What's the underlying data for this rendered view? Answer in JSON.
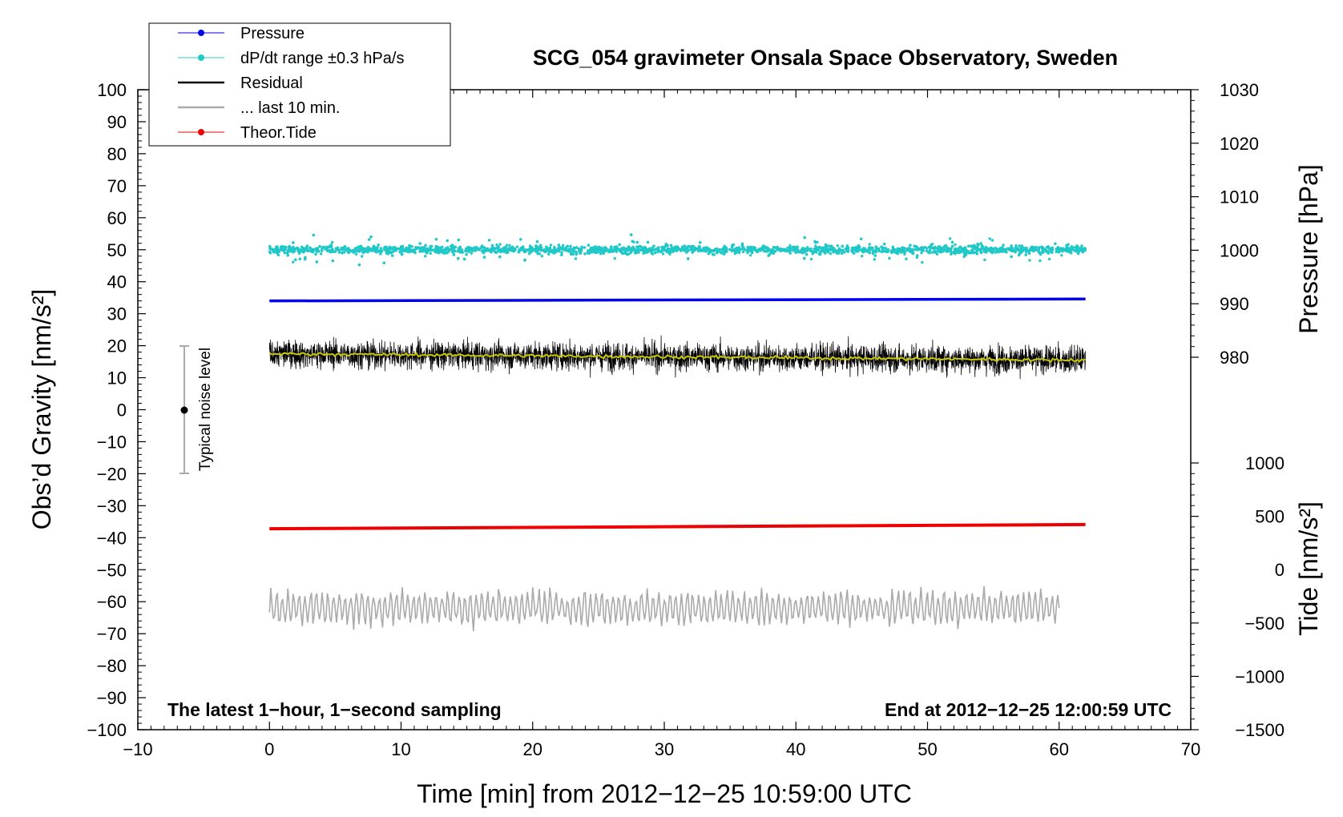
{
  "chart_data": {
    "type": "line",
    "title": "SCG_054 gravimeter Onsala Space Observatory, Sweden",
    "xlabel": "Time [min] from 2012−12−25 10:59:00 UTC",
    "ylabel_left": "Obs’d Gravity [nm/s²]",
    "ylabel_right_upper": "Pressure [hPa]",
    "ylabel_right_lower": "Tide [nm/s²]",
    "xlim": [
      -10,
      70
    ],
    "ylim": [
      -100,
      100
    ],
    "pressure_ylim": [
      980,
      1030
    ],
    "tide_ylim": [
      -1500,
      1000
    ],
    "grid": false,
    "legend_position": "top-left",
    "x_ticks": [
      "−10",
      "0",
      "10",
      "20",
      "30",
      "40",
      "50",
      "60",
      "70"
    ],
    "y_ticks": [
      "100",
      "90",
      "80",
      "70",
      "60",
      "50",
      "40",
      "30",
      "20",
      "10",
      "0",
      "−10",
      "−20",
      "−30",
      "−40",
      "−50",
      "−60",
      "−70",
      "−80",
      "−90",
      "−100"
    ],
    "pressure_ticks": [
      "1030",
      "1020",
      "1010",
      "1000",
      "990",
      "980"
    ],
    "tide_ticks": [
      "1000",
      "500",
      "0",
      "−500",
      "−1000",
      "−1500"
    ],
    "annotation_left": "The latest 1−hour, 1−second sampling",
    "annotation_right": "End at 2012−12−25 12:00:59 UTC",
    "noise_label": "Typical noise level",
    "noise_range": [
      -20,
      20
    ],
    "legend": [
      {
        "label": "Pressure",
        "color": "#0000ee",
        "marker": true
      },
      {
        "label": "dP/dt range ±0.3 hPa/s",
        "color": "#20c8c8",
        "marker": true
      },
      {
        "label": "Residual",
        "color": "#000000",
        "marker": false
      },
      {
        "label": "... last 10 min.",
        "color": "#aaaaaa",
        "marker": false
      },
      {
        "label": "Theor.Tide",
        "color": "#ee0000",
        "marker": true
      }
    ],
    "series": [
      {
        "name": "Pressure",
        "color": "#0000ee",
        "x": [
          0,
          62
        ],
        "values": [
          34.0,
          34.6
        ]
      },
      {
        "name": "dP/dt range ±0.3 hPa/s",
        "color": "#20c8c8",
        "center": 50,
        "x": [
          0,
          62
        ]
      },
      {
        "name": "Residual",
        "color": "#000000",
        "x": [
          0,
          62
        ],
        "values": [
          17.5,
          15.5
        ]
      },
      {
        "name": "... last 10 min.",
        "color": "#aaaaaa",
        "x": [
          0,
          60
        ],
        "values": [
          -62,
          -62
        ]
      },
      {
        "name": "Theor.Tide",
        "color": "#ee0000",
        "x": [
          0,
          62
        ],
        "values": [
          -37.2,
          -35.9
        ]
      }
    ],
    "smoothed_residual_color": "#c8c800"
  }
}
